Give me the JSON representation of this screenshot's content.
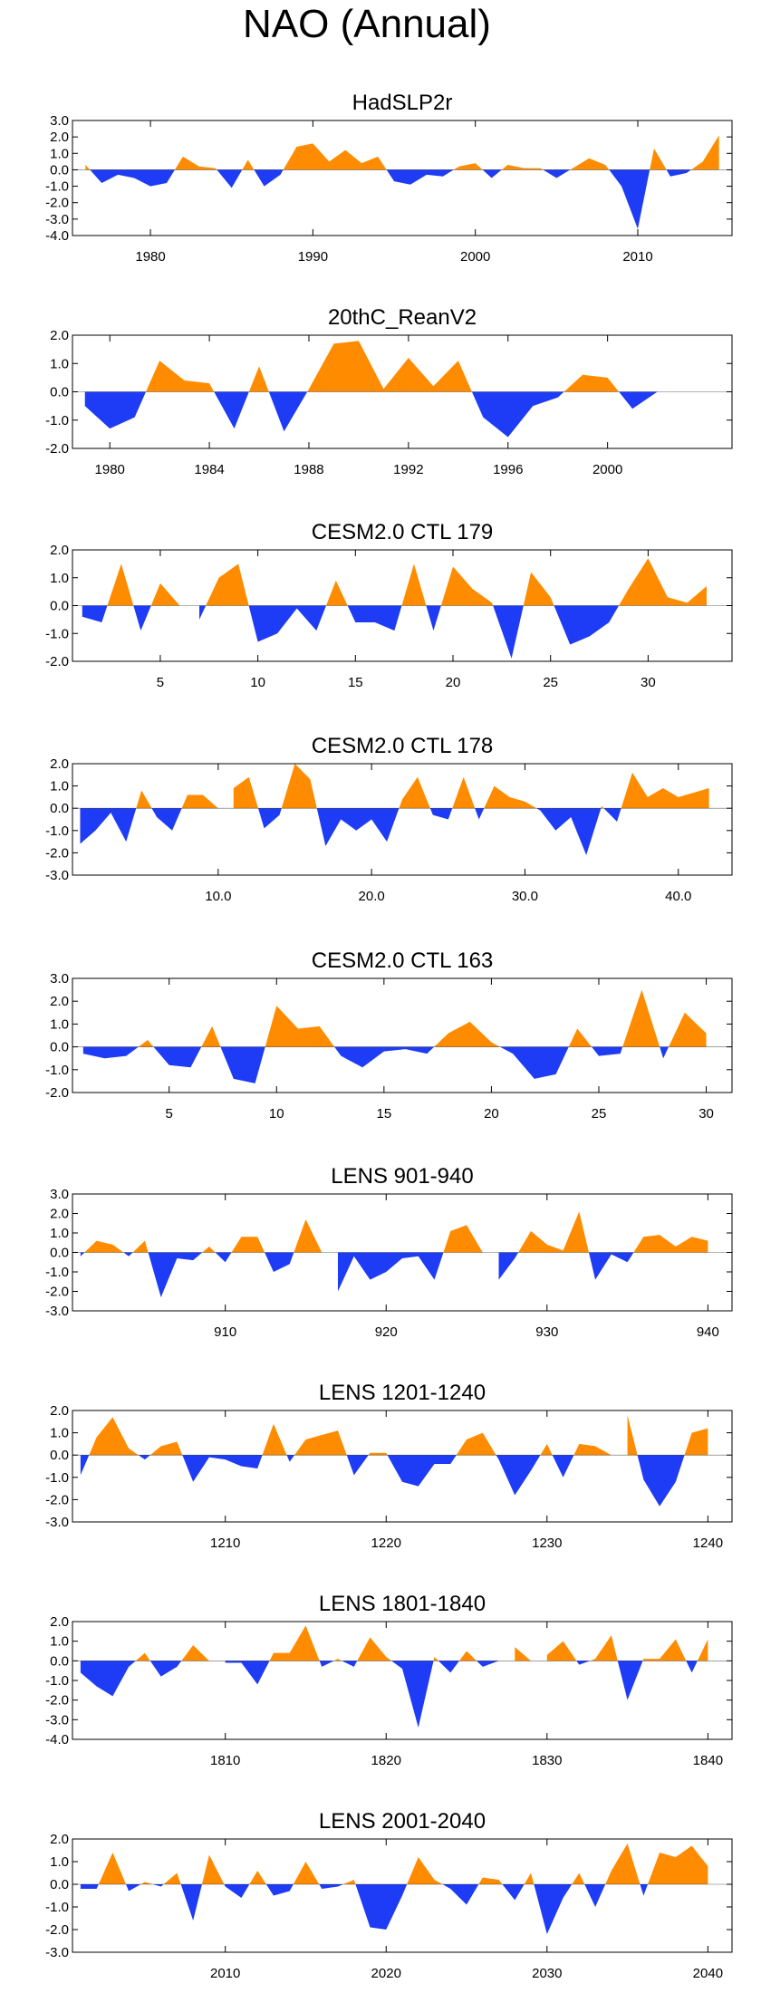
{
  "page": {
    "title": "NAO (Annual)"
  },
  "colors": {
    "positive": "#ff8c00",
    "negative": "#1e3cf5",
    "axis": "#000000"
  },
  "chart_data": [
    {
      "type": "area",
      "title": "HadSLP2r",
      "x_start": 1976,
      "x_end": 2015,
      "xlim": [
        1975.2,
        2015.8
      ],
      "ylim": [
        -4,
        3
      ],
      "yticks": [
        3,
        2,
        1,
        0,
        -1,
        -2,
        -3,
        -4
      ],
      "ytick_labels": [
        "3.0",
        "2.0",
        "1.0",
        "0.0",
        "-1.0",
        "-2.0",
        "-3.0",
        "-4.0"
      ],
      "xticks": [
        1980,
        1990,
        2000,
        2010
      ],
      "xtick_labels": [
        "1980",
        "1990",
        "2000",
        "2010"
      ],
      "values": [
        0.3,
        -0.8,
        -0.3,
        -0.5,
        -1.0,
        -0.8,
        0.8,
        0.2,
        0.1,
        -1.1,
        0.6,
        -1.0,
        -0.3,
        1.4,
        1.6,
        0.5,
        1.2,
        0.4,
        0.8,
        -0.7,
        -0.9,
        -0.3,
        -0.4,
        0.2,
        0.4,
        -0.5,
        0.3,
        0.1,
        0.1,
        -0.5,
        0.1,
        0.7,
        0.3,
        -1.0,
        -3.6,
        1.3,
        -0.4,
        -0.2,
        0.5,
        2.1
      ]
    },
    {
      "type": "area",
      "title": "20thC_ReanV2",
      "x_start": 1979,
      "x_end": 2002,
      "xlim": [
        1978.5,
        2005.0
      ],
      "ylim": [
        -2,
        2
      ],
      "yticks": [
        2,
        1,
        0,
        -1,
        -2
      ],
      "ytick_labels": [
        "2.0",
        "1.0",
        "0.0",
        "-1.0",
        "-2.0"
      ],
      "xticks": [
        1980,
        1984,
        1988,
        1992,
        1996,
        2000
      ],
      "xtick_labels": [
        "1980",
        "1984",
        "1988",
        "1992",
        "1996",
        "2000"
      ],
      "values": [
        -0.5,
        -1.3,
        -0.9,
        1.1,
        0.4,
        0.3,
        -1.3,
        0.9,
        -1.4,
        0.1,
        1.7,
        1.8,
        0.1,
        1.2,
        0.2,
        1.1,
        -0.9,
        -1.6,
        -0.5,
        -0.2,
        0.6,
        0.5,
        -0.6,
        0.0
      ]
    },
    {
      "type": "area",
      "title": "CESM2.0 CTL 179",
      "x_start": 1,
      "x_end": 33,
      "xlim": [
        0.5,
        34.3
      ],
      "ylim": [
        -2,
        2
      ],
      "yticks": [
        2,
        1,
        0,
        -1,
        -2
      ],
      "ytick_labels": [
        "2.0",
        "1.0",
        "0.0",
        "-1.0",
        "-2.0"
      ],
      "xticks": [
        5,
        10,
        15,
        20,
        25,
        30
      ],
      "xtick_labels": [
        "5",
        "10",
        "15",
        "20",
        "25",
        "30"
      ],
      "values": [
        -0.4,
        -0.6,
        1.5,
        -0.9,
        0.8,
        0.0,
        -0.5,
        1.0,
        1.5,
        -1.3,
        -1.0,
        -0.1,
        -0.9,
        0.9,
        -0.6,
        -0.6,
        -0.9,
        1.5,
        -0.9,
        1.4,
        0.6,
        0.1,
        -1.9,
        1.2,
        0.3,
        -1.4,
        -1.1,
        -0.6,
        0.6,
        1.7,
        0.3,
        0.1,
        0.7
      ]
    },
    {
      "type": "area",
      "title": "CESM2.0 CTL 178",
      "x_start": 1,
      "x_end": 42,
      "xlim": [
        0.5,
        43.5
      ],
      "ylim": [
        -3,
        2
      ],
      "yticks": [
        2,
        1,
        0,
        -1,
        -2,
        -3
      ],
      "ytick_labels": [
        "2.0",
        "1.0",
        "0.0",
        "-1.0",
        "-2.0",
        "-3.0"
      ],
      "xticks": [
        10,
        20,
        30,
        40
      ],
      "xtick_labels": [
        "10.0",
        "20.0",
        "30.0",
        "40.0"
      ],
      "values": [
        -1.6,
        -1.0,
        -0.2,
        -1.5,
        0.8,
        -0.4,
        -1.0,
        0.6,
        0.6,
        0.0,
        0.9,
        1.4,
        -0.9,
        -0.3,
        2.0,
        1.3,
        -1.7,
        -0.5,
        -1.0,
        -0.5,
        -1.5,
        0.4,
        1.4,
        -0.3,
        -0.5,
        1.4,
        -0.5,
        1.0,
        0.5,
        0.3,
        -0.1,
        -1.0,
        -0.4,
        -2.1,
        0.1,
        -0.6,
        1.6,
        0.5,
        0.9,
        0.5,
        0.7,
        0.9
      ]
    },
    {
      "type": "area",
      "title": "CESM2.0 CTL 163",
      "x_start": 1,
      "x_end": 30,
      "xlim": [
        0.5,
        31.2
      ],
      "ylim": [
        -2,
        3
      ],
      "yticks": [
        3,
        2,
        1,
        0,
        -1,
        -2
      ],
      "ytick_labels": [
        "3.0",
        "2.0",
        "1.0",
        "0.0",
        "-1.0",
        "-2.0"
      ],
      "xticks": [
        5,
        10,
        15,
        20,
        25,
        30
      ],
      "xtick_labels": [
        "5",
        "10",
        "15",
        "20",
        "25",
        "30"
      ],
      "values": [
        -0.3,
        -0.5,
        -0.4,
        0.3,
        -0.8,
        -0.9,
        0.9,
        -1.4,
        -1.6,
        1.8,
        0.8,
        0.9,
        -0.4,
        -0.9,
        -0.2,
        -0.1,
        -0.3,
        0.6,
        1.1,
        0.2,
        -0.3,
        -1.4,
        -1.2,
        0.8,
        -0.4,
        -0.3,
        2.5,
        -0.5,
        1.5,
        0.6
      ]
    },
    {
      "type": "area",
      "title": "LENS 901-940",
      "x_start": 901,
      "x_end": 940,
      "xlim": [
        900.5,
        941.5
      ],
      "ylim": [
        -3,
        3
      ],
      "yticks": [
        3,
        2,
        1,
        0,
        -1,
        -2,
        -3
      ],
      "ytick_labels": [
        "3.0",
        "2.0",
        "1.0",
        "0.0",
        "-1.0",
        "-2.0",
        "-3.0"
      ],
      "xticks": [
        910,
        920,
        930,
        940
      ],
      "xtick_labels": [
        "910",
        "920",
        "930",
        "940"
      ],
      "values": [
        -0.2,
        0.6,
        0.4,
        -0.2,
        0.6,
        -2.3,
        -0.3,
        -0.4,
        0.3,
        -0.5,
        0.8,
        0.8,
        -1.0,
        -0.6,
        1.7,
        0.0,
        -2.0,
        -0.2,
        -1.4,
        -1.0,
        -0.3,
        -0.2,
        -1.4,
        1.1,
        1.4,
        0.0,
        -1.4,
        -0.3,
        1.1,
        0.4,
        0.1,
        2.1,
        -1.4,
        -0.1,
        -0.5,
        0.8,
        0.9,
        0.3,
        0.8,
        0.6
      ]
    },
    {
      "type": "area",
      "title": "LENS 1201-1240",
      "x_start": 1201,
      "x_end": 1240,
      "xlim": [
        1200.5,
        1241.5
      ],
      "ylim": [
        -3,
        2
      ],
      "yticks": [
        2,
        1,
        0,
        -1,
        -2,
        -3
      ],
      "ytick_labels": [
        "2.0",
        "1.0",
        "0.0",
        "-1.0",
        "-2.0",
        "-3.0"
      ],
      "xticks": [
        1210,
        1220,
        1230,
        1240
      ],
      "xtick_labels": [
        "1210",
        "1220",
        "1230",
        "1240"
      ],
      "values": [
        -0.9,
        0.8,
        1.7,
        0.3,
        -0.2,
        0.4,
        0.6,
        -1.2,
        -0.1,
        -0.2,
        -0.5,
        -0.6,
        1.4,
        -0.3,
        0.7,
        0.9,
        1.1,
        -0.9,
        0.1,
        0.1,
        -1.2,
        -1.4,
        -0.4,
        -0.4,
        0.7,
        1.0,
        -0.2,
        -1.8,
        -0.7,
        0.5,
        -1.0,
        0.5,
        0.4,
        0.0,
        1.8,
        -1.1,
        -2.3,
        -1.2,
        1.0,
        1.2
      ]
    },
    {
      "type": "area",
      "title": "LENS 1801-1840",
      "x_start": 1801,
      "x_end": 1840,
      "xlim": [
        1800.5,
        1841.5
      ],
      "ylim": [
        -4,
        2
      ],
      "yticks": [
        2,
        1,
        0,
        -1,
        -2,
        -3,
        -4
      ],
      "ytick_labels": [
        "2.0",
        "1.0",
        "0.0",
        "-1.0",
        "-2.0",
        "-3.0",
        "-4.0"
      ],
      "xticks": [
        1810,
        1820,
        1830,
        1840
      ],
      "xtick_labels": [
        "1810",
        "1820",
        "1830",
        "1840"
      ],
      "values": [
        -0.6,
        -1.3,
        -1.8,
        -0.3,
        0.4,
        -0.8,
        -0.3,
        0.8,
        0.0,
        -0.1,
        -0.1,
        -1.2,
        0.4,
        0.4,
        1.8,
        -0.3,
        0.1,
        -0.3,
        1.2,
        0.2,
        -0.4,
        -3.4,
        0.2,
        -0.6,
        0.5,
        -0.3,
        0.0,
        0.7,
        0.0,
        0.3,
        1.0,
        -0.2,
        0.1,
        1.3,
        -2.0,
        0.1,
        0.1,
        1.1,
        -0.6,
        1.1
      ]
    },
    {
      "type": "area",
      "title": "LENS 2001-2040",
      "x_start": 2001,
      "x_end": 2040,
      "xlim": [
        2000.5,
        2041.5
      ],
      "ylim": [
        -3,
        2
      ],
      "yticks": [
        2,
        1,
        0,
        -1,
        -2,
        -3
      ],
      "ytick_labels": [
        "2.0",
        "1.0",
        "0.0",
        "-1.0",
        "-2.0",
        "-3.0"
      ],
      "xticks": [
        2010,
        2020,
        2030,
        2040
      ],
      "xtick_labels": [
        "2010",
        "2020",
        "2030",
        "2040"
      ],
      "values": [
        -0.2,
        -0.2,
        1.4,
        -0.3,
        0.1,
        -0.1,
        0.5,
        -1.6,
        1.3,
        -0.1,
        -0.6,
        0.6,
        -0.5,
        -0.3,
        1.0,
        -0.2,
        -0.1,
        0.2,
        -1.9,
        -2.0,
        -0.5,
        1.2,
        0.2,
        -0.2,
        -0.9,
        0.3,
        0.2,
        -0.7,
        0.5,
        -2.2,
        -0.6,
        0.5,
        -1.0,
        0.6,
        1.8,
        -0.5,
        1.4,
        1.2,
        1.7,
        0.8
      ]
    }
  ]
}
